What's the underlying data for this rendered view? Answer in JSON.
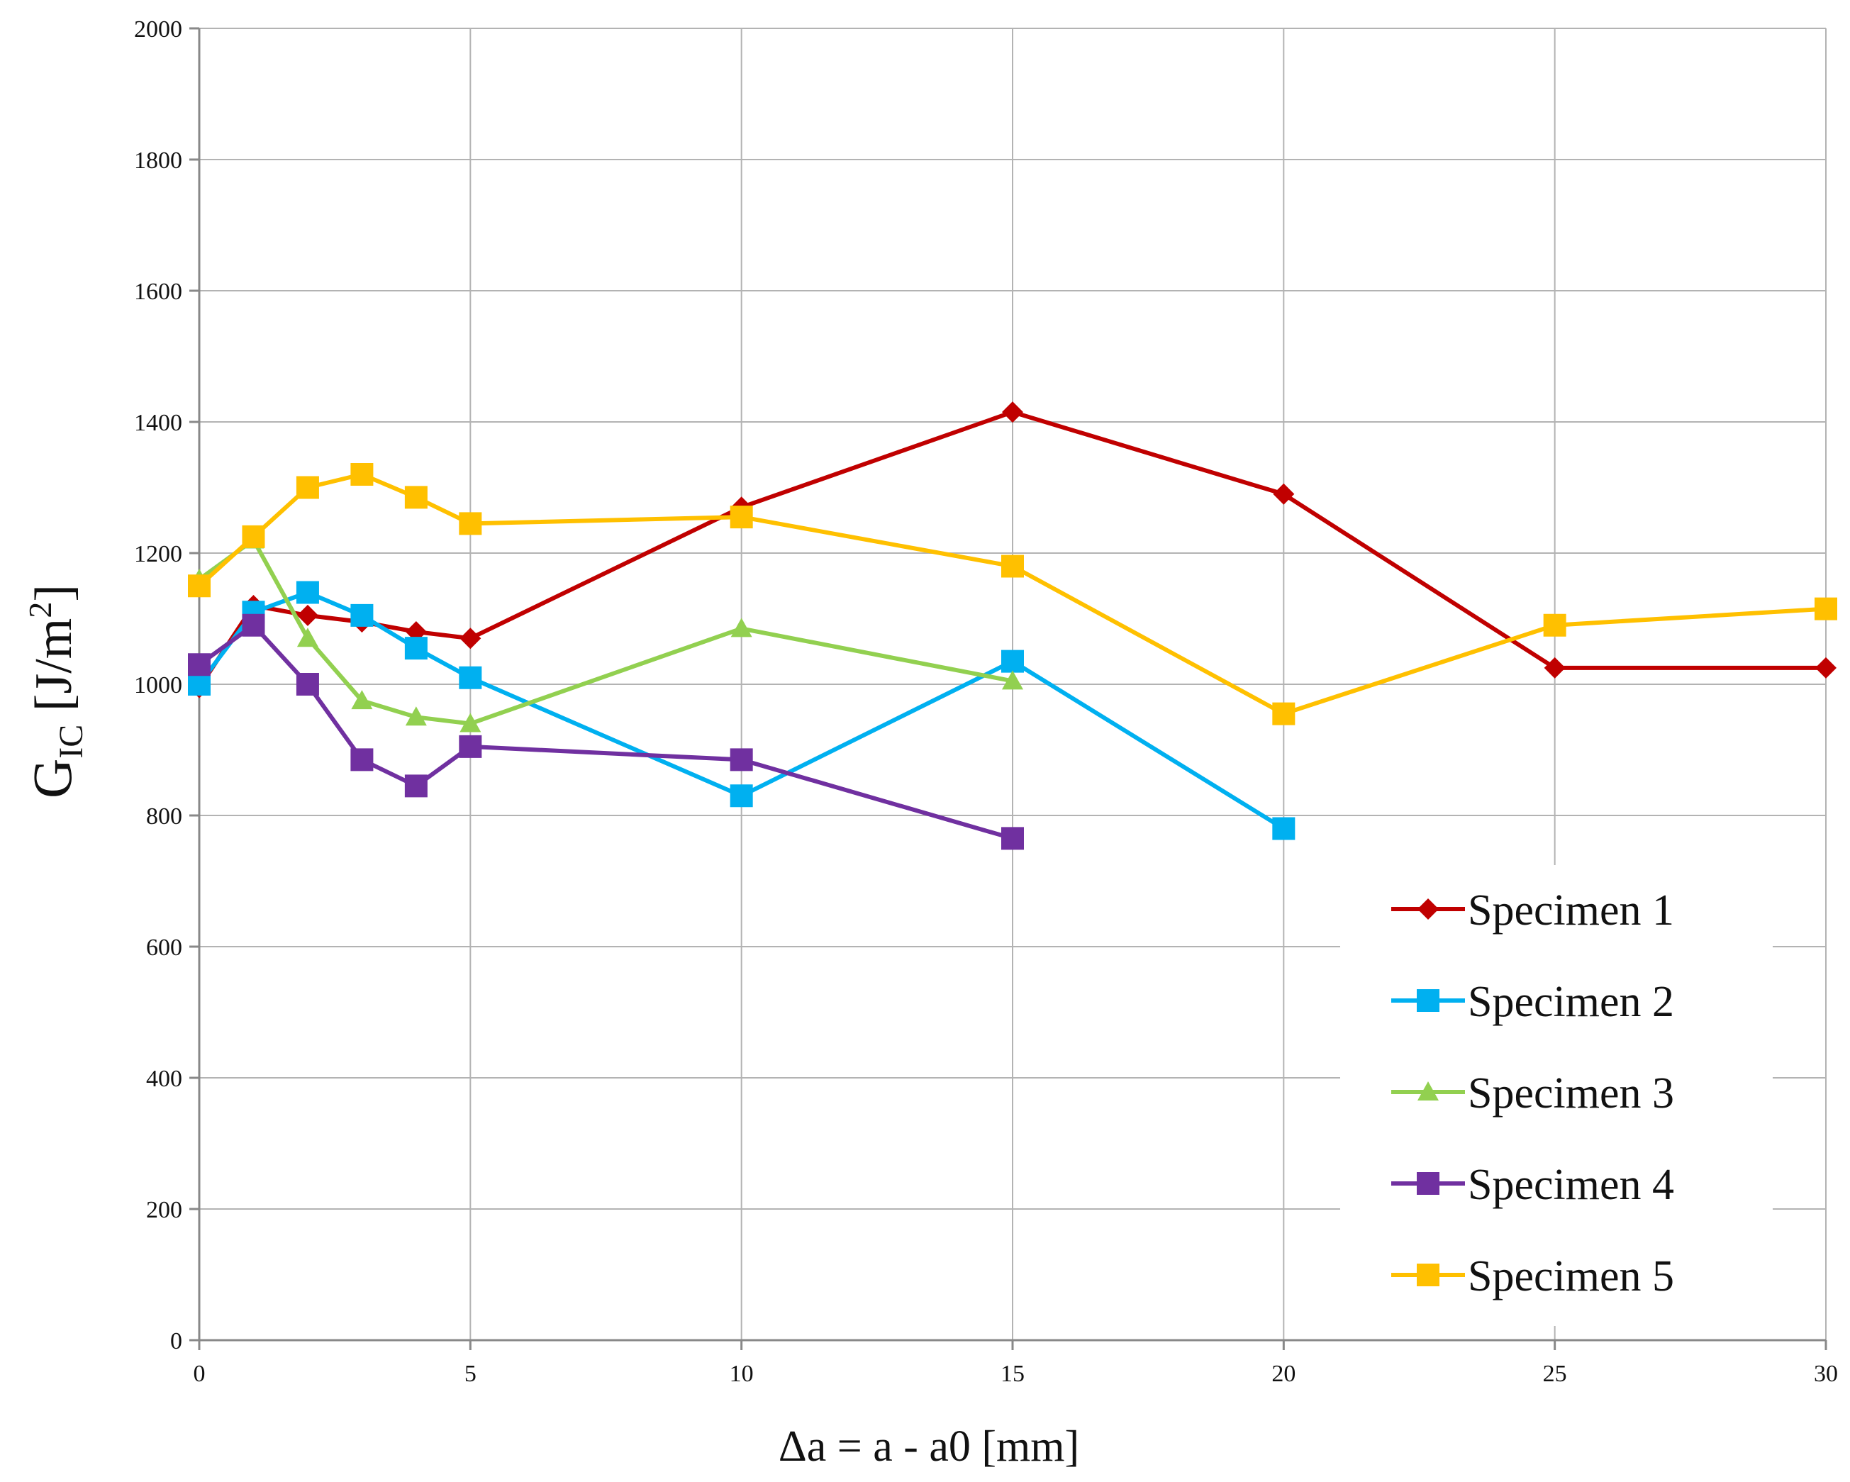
{
  "chart_data": {
    "type": "line",
    "title": "",
    "xlabel": "Δa  = a - a0 [mm]",
    "ylabel": {
      "main": "G",
      "sub": "IC",
      "unit": " [J/m",
      "sup": "2",
      "close": "]"
    },
    "xlim": [
      0,
      30
    ],
    "ylim": [
      0,
      2000
    ],
    "xticks": [
      0,
      5,
      10,
      15,
      20,
      25,
      30
    ],
    "yticks": [
      0,
      200,
      400,
      600,
      800,
      1000,
      1200,
      1400,
      1600,
      1800,
      2000
    ],
    "xtick_labels": [
      "0",
      "5",
      "10",
      "15",
      "20",
      "25",
      "30"
    ],
    "ytick_labels": [
      "0",
      "200",
      "400",
      "600",
      "800",
      "1000",
      "1200",
      "1400",
      "1600",
      "1800",
      "2000"
    ],
    "grid": true,
    "legend_position": "bottom-right",
    "series": [
      {
        "name": "Specimen 1",
        "color": "#c00000",
        "marker": "diamond",
        "x": [
          0,
          1,
          2,
          3,
          4,
          5,
          10,
          15,
          20,
          25,
          30
        ],
        "y": [
          995,
          1120,
          1105,
          1095,
          1080,
          1070,
          1270,
          1415,
          1290,
          1025,
          1025
        ]
      },
      {
        "name": "Specimen 2",
        "color": "#00b0f0",
        "marker": "square",
        "x": [
          0,
          1,
          2,
          3,
          4,
          5,
          10,
          15,
          20
        ],
        "y": [
          1000,
          1110,
          1140,
          1105,
          1055,
          1010,
          830,
          1035,
          780
        ]
      },
      {
        "name": "Specimen 3",
        "color": "#92d050",
        "marker": "triangle",
        "x": [
          0,
          1,
          2,
          3,
          4,
          5,
          10,
          15
        ],
        "y": [
          1160,
          1220,
          1070,
          975,
          950,
          940,
          1085,
          1005
        ]
      },
      {
        "name": "Specimen 4",
        "color": "#7030a0",
        "marker": "square",
        "x": [
          0,
          1,
          2,
          3,
          4,
          5,
          10,
          15
        ],
        "y": [
          1030,
          1090,
          1000,
          885,
          845,
          905,
          885,
          765
        ]
      },
      {
        "name": "Specimen 5",
        "color": "#ffc000",
        "marker": "square",
        "x": [
          0,
          1,
          2,
          3,
          4,
          5,
          10,
          15,
          20,
          25,
          30
        ],
        "y": [
          1150,
          1225,
          1300,
          1320,
          1285,
          1245,
          1255,
          1180,
          955,
          1090,
          1115
        ]
      }
    ]
  }
}
